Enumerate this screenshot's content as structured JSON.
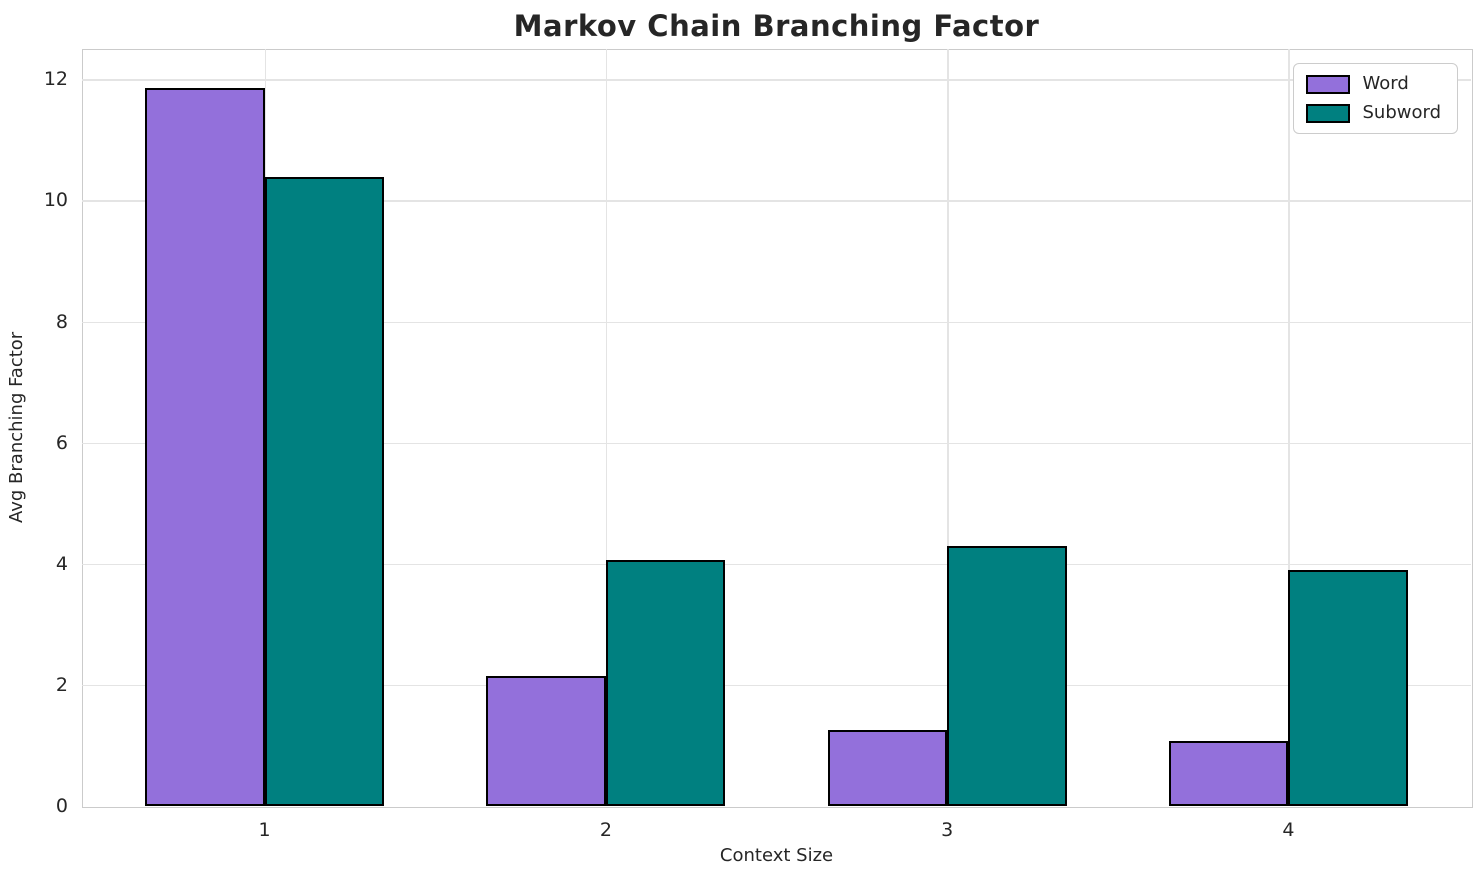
{
  "chart_data": {
    "type": "bar",
    "title": "Markov Chain Branching Factor",
    "xlabel": "Context Size",
    "ylabel": "Avg Branching Factor",
    "categories": [
      "1",
      "2",
      "3",
      "4"
    ],
    "x": [
      1,
      2,
      3,
      4
    ],
    "series": [
      {
        "name": "Word",
        "color": "#9370DB",
        "values": [
          11.85,
          2.15,
          1.26,
          1.07
        ]
      },
      {
        "name": "Subword",
        "color": "#008080",
        "values": [
          10.38,
          4.06,
          4.3,
          3.9
        ]
      }
    ],
    "bar_width": 0.35,
    "bar_edge_color": "#000000",
    "xlim": [
      0.465,
      4.535
    ],
    "ylim": [
      0,
      12.5
    ],
    "yticks": [
      0,
      2,
      4,
      6,
      8,
      10,
      12
    ],
    "grid": true,
    "legend_position": "upper right",
    "colors": {
      "text": "#262626",
      "grid": "#e4e4e4",
      "spine": "#cbcbcb",
      "background": "#ffffff"
    }
  }
}
